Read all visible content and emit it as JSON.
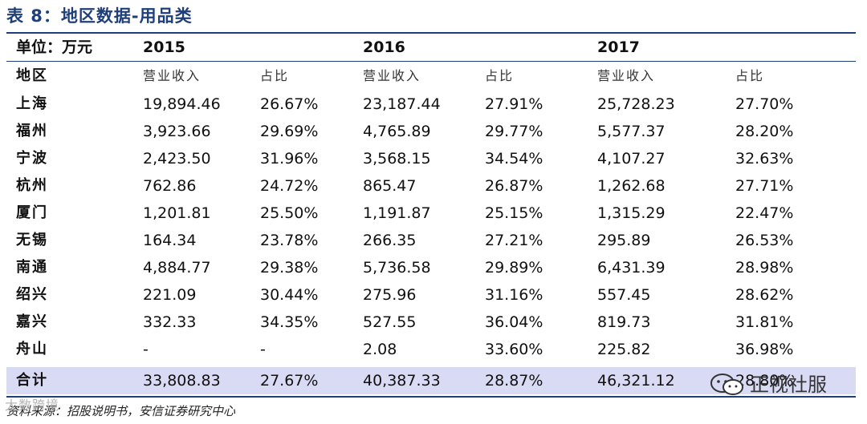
{
  "title": "表 8：地区数据-用品类",
  "unit_label": "单位：万元",
  "years": [
    "2015",
    "2016",
    "2017"
  ],
  "column_headers": {
    "region": "地区",
    "revenue": "营业收入",
    "share": "占比"
  },
  "rows": [
    {
      "region": "上海",
      "v2015": "19,894.46",
      "s2015": "26.67%",
      "v2016": "23,187.44",
      "s2016": "27.91%",
      "v2017": "25,728.23",
      "s2017": "27.70%"
    },
    {
      "region": "福州",
      "v2015": "3,923.66",
      "s2015": "29.69%",
      "v2016": "4,765.89",
      "s2016": "29.77%",
      "v2017": "5,577.37",
      "s2017": "28.20%"
    },
    {
      "region": "宁波",
      "v2015": "2,423.50",
      "s2015": "31.96%",
      "v2016": "3,568.15",
      "s2016": "34.54%",
      "v2017": "4,107.27",
      "s2017": "32.63%"
    },
    {
      "region": "杭州",
      "v2015": "762.86",
      "s2015": "24.72%",
      "v2016": "865.47",
      "s2016": "26.87%",
      "v2017": "1,262.68",
      "s2017": "27.71%"
    },
    {
      "region": "厦门",
      "v2015": "1,201.81",
      "s2015": "25.50%",
      "v2016": "1,191.87",
      "s2016": "25.15%",
      "v2017": "1,315.29",
      "s2017": "22.47%"
    },
    {
      "region": "无锡",
      "v2015": "164.34",
      "s2015": "23.78%",
      "v2016": "266.35",
      "s2016": "27.21%",
      "v2017": "295.89",
      "s2017": "26.53%"
    },
    {
      "region": "南通",
      "v2015": "4,884.77",
      "s2015": "29.38%",
      "v2016": "5,736.58",
      "s2016": "29.89%",
      "v2017": "6,431.39",
      "s2017": "28.98%"
    },
    {
      "region": "绍兴",
      "v2015": "221.09",
      "s2015": "30.44%",
      "v2016": "275.96",
      "s2016": "31.16%",
      "v2017": "557.45",
      "s2017": "28.62%"
    },
    {
      "region": "嘉兴",
      "v2015": "332.33",
      "s2015": "34.35%",
      "v2016": "527.55",
      "s2016": "36.04%",
      "v2017": "819.73",
      "s2017": "31.81%"
    },
    {
      "region": "舟山",
      "v2015": "-",
      "s2015": "-",
      "v2016": "2.08",
      "s2016": "33.60%",
      "v2017": "225.82",
      "s2017": "36.98%"
    }
  ],
  "total": {
    "region": "合计",
    "v2015": "33,808.83",
    "s2015": "27.67%",
    "v2016": "40,387.33",
    "s2016": "28.87%",
    "v2017": "46,321.12",
    "s2017": "28.80%"
  },
  "source": "资料来源：招股说明书，安信证券研究中心",
  "watermark_left": "大数跨境",
  "watermark_right": "正视社服",
  "colors": {
    "accent": "#1f3f7a",
    "total_row_bg": "#d9daf4"
  },
  "icons": [
    "wechat-icon"
  ]
}
